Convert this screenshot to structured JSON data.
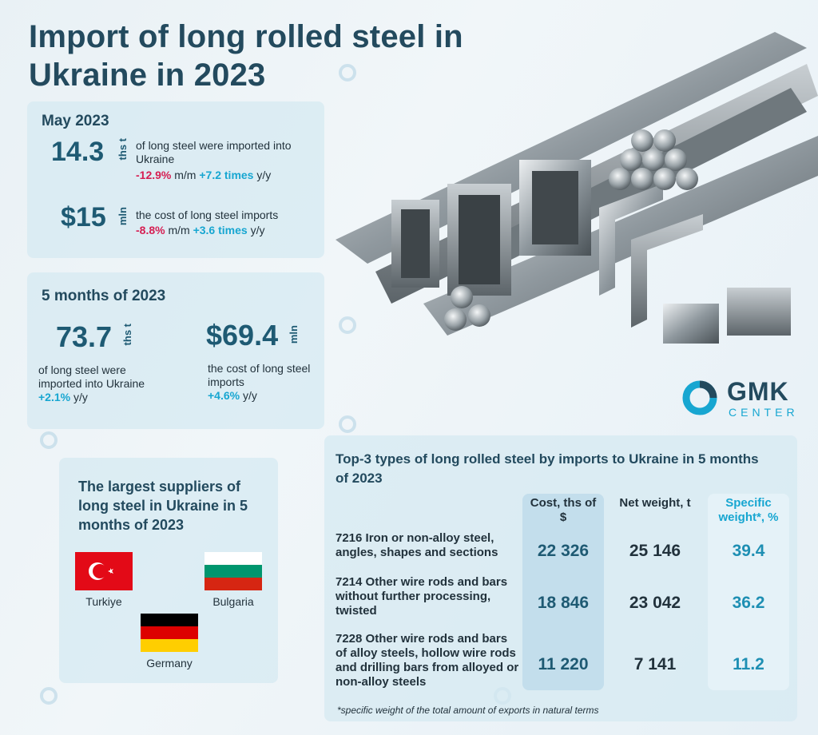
{
  "title": "Import of long rolled steel in Ukraine in 2023",
  "may": {
    "heading": "May 2023",
    "volume": {
      "value": "14.3",
      "unit": "ths t",
      "desc": "of long steel were imported into Ukraine",
      "mm": "-12.9%",
      "mm_label": "m/m",
      "yy": "+7.2 times",
      "yy_label": "y/y"
    },
    "cost": {
      "value": "$15",
      "unit": "mln",
      "desc": "the cost of long steel imports",
      "mm": "-8.8%",
      "mm_label": "m/m",
      "yy": "+3.6 times",
      "yy_label": "y/y"
    }
  },
  "five_months": {
    "heading": "5 months of 2023",
    "volume": {
      "value": "73.7",
      "unit": "ths t",
      "desc": "of long steel were imported into Ukraine",
      "yy": "+2.1%",
      "yy_label": "y/y"
    },
    "cost": {
      "value": "$69.4",
      "unit": "mln",
      "desc": "the cost of long steel imports",
      "yy": "+4.6%",
      "yy_label": "y/y"
    }
  },
  "suppliers": {
    "heading": "The largest suppliers of long steel in Ukraine in 5 months of 2023",
    "countries": [
      "Turkiye",
      "Bulgaria",
      "Germany"
    ]
  },
  "logo": {
    "name": "GMK",
    "sub": "CENTER"
  },
  "table": {
    "heading": "Top-3 types of long rolled steel by imports to Ukraine in 5 months of 2023",
    "columns": [
      "Cost, ths of $",
      "Net weight, t",
      "Specific weight*, %"
    ],
    "rows": [
      {
        "label": "7216 Iron or non-alloy steel, angles, shapes and sections",
        "cost": "22 326",
        "weight": "25 146",
        "share": "39.4"
      },
      {
        "label": "7214 Other wire rods and bars without further processing, twisted",
        "cost": "18 846",
        "weight": "23 042",
        "share": "36.2"
      },
      {
        "label": "7228 Other wire rods and bars of alloy steels, hollow wire rods and drilling bars from alloyed or non-alloy steels",
        "cost": "11 220",
        "weight": "7 141",
        "share": "11.2"
      }
    ],
    "note": "*specific weight of the total amount of exports in natural terms"
  },
  "colors": {
    "accent": "#17a6d1",
    "negative": "#d61e52",
    "dark": "#234a5e"
  }
}
